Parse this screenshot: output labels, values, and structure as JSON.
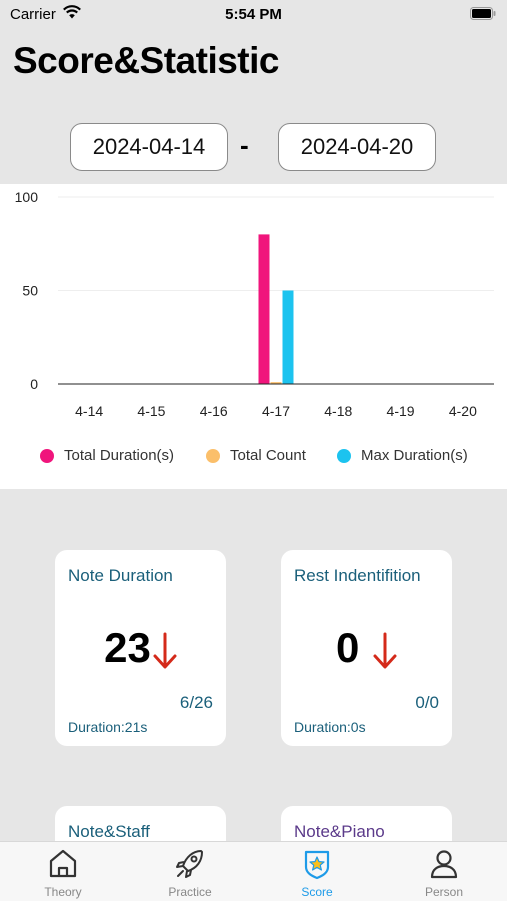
{
  "status_bar": {
    "carrier": "Carrier",
    "time": "5:54 PM"
  },
  "header": {
    "title": "Score&Statistic"
  },
  "date_range": {
    "start": "2024-04-14",
    "separator": "-",
    "end": "2024-04-20"
  },
  "chart_data": {
    "type": "bar",
    "categories": [
      "4-14",
      "4-15",
      "4-16",
      "4-17",
      "4-18",
      "4-19",
      "4-20"
    ],
    "series": [
      {
        "name": "Total Duration(s)",
        "color": "#f0157c",
        "values": [
          0,
          0,
          0,
          80,
          0,
          0,
          0
        ]
      },
      {
        "name": "Total Count",
        "color": "#fbbf6a",
        "values": [
          0,
          0,
          0,
          1,
          0,
          0,
          0
        ]
      },
      {
        "name": "Max Duration(s)",
        "color": "#1cc3ef",
        "values": [
          0,
          0,
          0,
          50,
          0,
          0,
          0
        ]
      }
    ],
    "y_ticks": [
      "0",
      "50",
      "100"
    ],
    "ylim": [
      0,
      100
    ],
    "grid": true,
    "legend_placement": "bottom"
  },
  "cards": [
    {
      "title": "Note Duration",
      "score": "23",
      "trend": "down",
      "ratio": "6/26",
      "duration": "Duration:21s"
    },
    {
      "title": "Rest Indentifition",
      "score": "0",
      "trend": "down",
      "ratio": "0/0",
      "duration": "Duration:0s"
    },
    {
      "title": "Note&Staff"
    },
    {
      "title": "Note&Piano"
    }
  ],
  "colors": {
    "trend_down": "#d42a1a",
    "card_text": "#1a5f7a",
    "tab_active": "#1e9be8",
    "tab_inactive": "#888888"
  },
  "tabs": [
    {
      "label": "Theory",
      "icon": "home-icon",
      "active": false
    },
    {
      "label": "Practice",
      "icon": "rocket-icon",
      "active": false
    },
    {
      "label": "Score",
      "icon": "star-badge-icon",
      "active": true
    },
    {
      "label": "Person",
      "icon": "person-icon",
      "active": false
    }
  ]
}
